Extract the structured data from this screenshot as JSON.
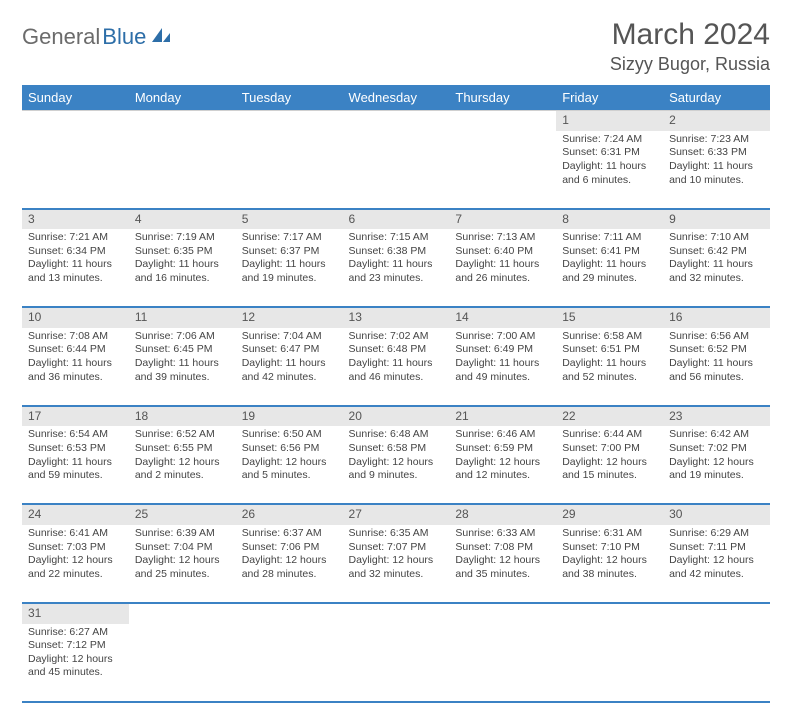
{
  "brand": {
    "part1": "General",
    "part2": "Blue"
  },
  "title": "March 2024",
  "location": "Sizyy Bugor, Russia",
  "colors": {
    "header_bg": "#3b82c4",
    "header_text": "#ffffff",
    "daynum_bg": "#e7e7e7",
    "rule": "#3b82c4",
    "text": "#444444",
    "brand_gray": "#6b6b6b",
    "brand_blue": "#2d6ea8"
  },
  "dayNames": [
    "Sunday",
    "Monday",
    "Tuesday",
    "Wednesday",
    "Thursday",
    "Friday",
    "Saturday"
  ],
  "weeks": [
    [
      null,
      null,
      null,
      null,
      null,
      {
        "n": "1",
        "sr": "Sunrise: 7:24 AM",
        "ss": "Sunset: 6:31 PM",
        "dl1": "Daylight: 11 hours",
        "dl2": "and 6 minutes."
      },
      {
        "n": "2",
        "sr": "Sunrise: 7:23 AM",
        "ss": "Sunset: 6:33 PM",
        "dl1": "Daylight: 11 hours",
        "dl2": "and 10 minutes."
      }
    ],
    [
      {
        "n": "3",
        "sr": "Sunrise: 7:21 AM",
        "ss": "Sunset: 6:34 PM",
        "dl1": "Daylight: 11 hours",
        "dl2": "and 13 minutes."
      },
      {
        "n": "4",
        "sr": "Sunrise: 7:19 AM",
        "ss": "Sunset: 6:35 PM",
        "dl1": "Daylight: 11 hours",
        "dl2": "and 16 minutes."
      },
      {
        "n": "5",
        "sr": "Sunrise: 7:17 AM",
        "ss": "Sunset: 6:37 PM",
        "dl1": "Daylight: 11 hours",
        "dl2": "and 19 minutes."
      },
      {
        "n": "6",
        "sr": "Sunrise: 7:15 AM",
        "ss": "Sunset: 6:38 PM",
        "dl1": "Daylight: 11 hours",
        "dl2": "and 23 minutes."
      },
      {
        "n": "7",
        "sr": "Sunrise: 7:13 AM",
        "ss": "Sunset: 6:40 PM",
        "dl1": "Daylight: 11 hours",
        "dl2": "and 26 minutes."
      },
      {
        "n": "8",
        "sr": "Sunrise: 7:11 AM",
        "ss": "Sunset: 6:41 PM",
        "dl1": "Daylight: 11 hours",
        "dl2": "and 29 minutes."
      },
      {
        "n": "9",
        "sr": "Sunrise: 7:10 AM",
        "ss": "Sunset: 6:42 PM",
        "dl1": "Daylight: 11 hours",
        "dl2": "and 32 minutes."
      }
    ],
    [
      {
        "n": "10",
        "sr": "Sunrise: 7:08 AM",
        "ss": "Sunset: 6:44 PM",
        "dl1": "Daylight: 11 hours",
        "dl2": "and 36 minutes."
      },
      {
        "n": "11",
        "sr": "Sunrise: 7:06 AM",
        "ss": "Sunset: 6:45 PM",
        "dl1": "Daylight: 11 hours",
        "dl2": "and 39 minutes."
      },
      {
        "n": "12",
        "sr": "Sunrise: 7:04 AM",
        "ss": "Sunset: 6:47 PM",
        "dl1": "Daylight: 11 hours",
        "dl2": "and 42 minutes."
      },
      {
        "n": "13",
        "sr": "Sunrise: 7:02 AM",
        "ss": "Sunset: 6:48 PM",
        "dl1": "Daylight: 11 hours",
        "dl2": "and 46 minutes."
      },
      {
        "n": "14",
        "sr": "Sunrise: 7:00 AM",
        "ss": "Sunset: 6:49 PM",
        "dl1": "Daylight: 11 hours",
        "dl2": "and 49 minutes."
      },
      {
        "n": "15",
        "sr": "Sunrise: 6:58 AM",
        "ss": "Sunset: 6:51 PM",
        "dl1": "Daylight: 11 hours",
        "dl2": "and 52 minutes."
      },
      {
        "n": "16",
        "sr": "Sunrise: 6:56 AM",
        "ss": "Sunset: 6:52 PM",
        "dl1": "Daylight: 11 hours",
        "dl2": "and 56 minutes."
      }
    ],
    [
      {
        "n": "17",
        "sr": "Sunrise: 6:54 AM",
        "ss": "Sunset: 6:53 PM",
        "dl1": "Daylight: 11 hours",
        "dl2": "and 59 minutes."
      },
      {
        "n": "18",
        "sr": "Sunrise: 6:52 AM",
        "ss": "Sunset: 6:55 PM",
        "dl1": "Daylight: 12 hours",
        "dl2": "and 2 minutes."
      },
      {
        "n": "19",
        "sr": "Sunrise: 6:50 AM",
        "ss": "Sunset: 6:56 PM",
        "dl1": "Daylight: 12 hours",
        "dl2": "and 5 minutes."
      },
      {
        "n": "20",
        "sr": "Sunrise: 6:48 AM",
        "ss": "Sunset: 6:58 PM",
        "dl1": "Daylight: 12 hours",
        "dl2": "and 9 minutes."
      },
      {
        "n": "21",
        "sr": "Sunrise: 6:46 AM",
        "ss": "Sunset: 6:59 PM",
        "dl1": "Daylight: 12 hours",
        "dl2": "and 12 minutes."
      },
      {
        "n": "22",
        "sr": "Sunrise: 6:44 AM",
        "ss": "Sunset: 7:00 PM",
        "dl1": "Daylight: 12 hours",
        "dl2": "and 15 minutes."
      },
      {
        "n": "23",
        "sr": "Sunrise: 6:42 AM",
        "ss": "Sunset: 7:02 PM",
        "dl1": "Daylight: 12 hours",
        "dl2": "and 19 minutes."
      }
    ],
    [
      {
        "n": "24",
        "sr": "Sunrise: 6:41 AM",
        "ss": "Sunset: 7:03 PM",
        "dl1": "Daylight: 12 hours",
        "dl2": "and 22 minutes."
      },
      {
        "n": "25",
        "sr": "Sunrise: 6:39 AM",
        "ss": "Sunset: 7:04 PM",
        "dl1": "Daylight: 12 hours",
        "dl2": "and 25 minutes."
      },
      {
        "n": "26",
        "sr": "Sunrise: 6:37 AM",
        "ss": "Sunset: 7:06 PM",
        "dl1": "Daylight: 12 hours",
        "dl2": "and 28 minutes."
      },
      {
        "n": "27",
        "sr": "Sunrise: 6:35 AM",
        "ss": "Sunset: 7:07 PM",
        "dl1": "Daylight: 12 hours",
        "dl2": "and 32 minutes."
      },
      {
        "n": "28",
        "sr": "Sunrise: 6:33 AM",
        "ss": "Sunset: 7:08 PM",
        "dl1": "Daylight: 12 hours",
        "dl2": "and 35 minutes."
      },
      {
        "n": "29",
        "sr": "Sunrise: 6:31 AM",
        "ss": "Sunset: 7:10 PM",
        "dl1": "Daylight: 12 hours",
        "dl2": "and 38 minutes."
      },
      {
        "n": "30",
        "sr": "Sunrise: 6:29 AM",
        "ss": "Sunset: 7:11 PM",
        "dl1": "Daylight: 12 hours",
        "dl2": "and 42 minutes."
      }
    ],
    [
      {
        "n": "31",
        "sr": "Sunrise: 6:27 AM",
        "ss": "Sunset: 7:12 PM",
        "dl1": "Daylight: 12 hours",
        "dl2": "and 45 minutes."
      },
      null,
      null,
      null,
      null,
      null,
      null
    ]
  ]
}
